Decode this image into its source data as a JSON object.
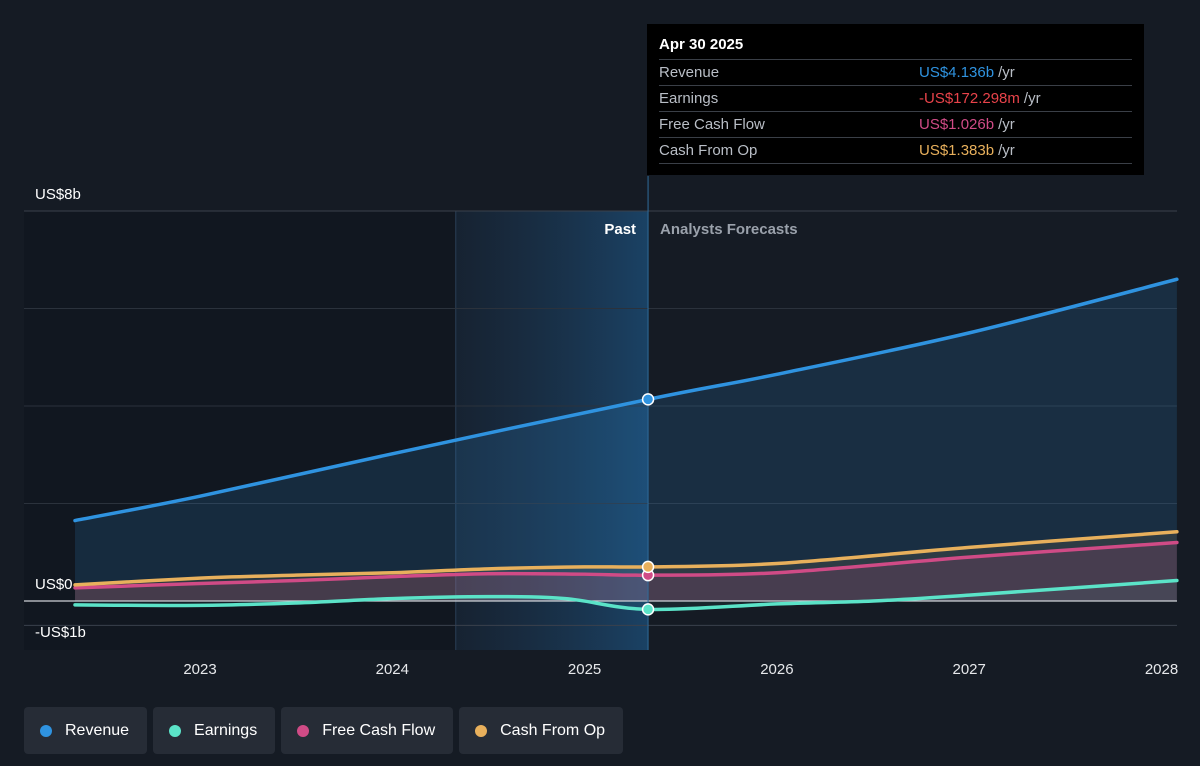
{
  "chart_data": {
    "type": "line",
    "x_ticks": [
      "2023",
      "2024",
      "2025",
      "2026",
      "2027",
      "2028"
    ],
    "y_labels": [
      "US$8b",
      "US$0",
      "-US$1b"
    ],
    "ylim": [
      -1,
      8
    ],
    "divider_labels": {
      "past": "Past",
      "forecast": "Analysts Forecasts"
    },
    "grid": true,
    "legend_position": "bottom-left",
    "series": [
      {
        "name": "Revenue",
        "color": "#2f93e0",
        "points": [
          [
            2022.35,
            1.65
          ],
          [
            2023.0,
            2.15
          ],
          [
            2024.0,
            3.02
          ],
          [
            2025.33,
            4.136
          ],
          [
            2026.0,
            4.65
          ],
          [
            2027.0,
            5.5
          ],
          [
            2028.08,
            6.6
          ]
        ]
      },
      {
        "name": "Earnings",
        "color": "#5be3c8",
        "points": [
          [
            2022.35,
            -0.08
          ],
          [
            2023.0,
            -0.09
          ],
          [
            2023.5,
            -0.04
          ],
          [
            2024.0,
            0.05
          ],
          [
            2024.5,
            0.09
          ],
          [
            2024.9,
            0.05
          ],
          [
            2025.33,
            -0.172
          ],
          [
            2026.0,
            -0.06
          ],
          [
            2026.5,
            0.0
          ],
          [
            2027.0,
            0.12
          ],
          [
            2028.08,
            0.42
          ]
        ]
      },
      {
        "name": "Free Cash Flow",
        "color": "#d04b86",
        "points": [
          [
            2022.35,
            0.27
          ],
          [
            2023.0,
            0.36
          ],
          [
            2023.5,
            0.42
          ],
          [
            2024.0,
            0.5
          ],
          [
            2024.5,
            0.56
          ],
          [
            2025.0,
            0.55
          ],
          [
            2025.33,
            1.026
          ],
          [
            2026.0,
            0.58
          ],
          [
            2027.0,
            0.9
          ],
          [
            2028.08,
            1.2
          ]
        ]
      },
      {
        "name": "Cash From Op",
        "color": "#e8b05c",
        "points": [
          [
            2022.35,
            0.33
          ],
          [
            2023.0,
            0.47
          ],
          [
            2023.5,
            0.53
          ],
          [
            2024.0,
            0.58
          ],
          [
            2024.5,
            0.66
          ],
          [
            2025.0,
            0.7
          ],
          [
            2025.33,
            1.383
          ],
          [
            2026.0,
            0.77
          ],
          [
            2027.0,
            1.1
          ],
          [
            2028.08,
            1.42
          ]
        ]
      }
    ]
  },
  "tooltip": {
    "date": "Apr 30 2025",
    "rows": [
      {
        "label": "Revenue",
        "value": "US$4.136b",
        "unit": "/yr",
        "color": "#2f93e0"
      },
      {
        "label": "Earnings",
        "value": "-US$172.298m",
        "unit": "/yr",
        "color": "#e8434a"
      },
      {
        "label": "Free Cash Flow",
        "value": "US$1.026b",
        "unit": "/yr",
        "color": "#d04b86"
      },
      {
        "label": "Cash From Op",
        "value": "US$1.383b",
        "unit": "/yr",
        "color": "#e8b05c"
      }
    ]
  },
  "legend": [
    {
      "label": "Revenue",
      "color": "#2f93e0"
    },
    {
      "label": "Earnings",
      "color": "#5be3c8"
    },
    {
      "label": "Free Cash Flow",
      "color": "#d04b86"
    },
    {
      "label": "Cash From Op",
      "color": "#e8b05c"
    }
  ]
}
